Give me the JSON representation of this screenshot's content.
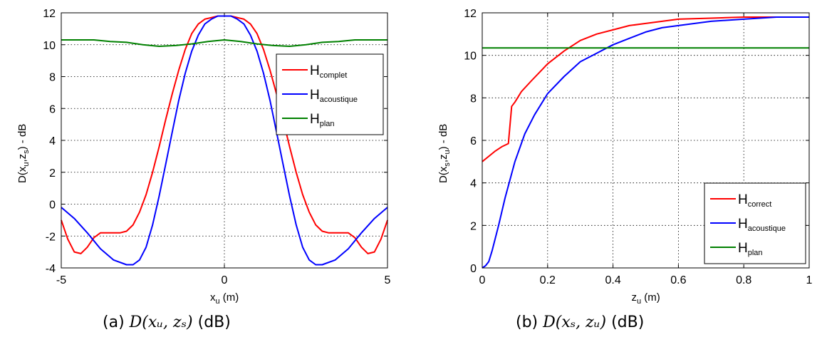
{
  "chart_data": [
    {
      "type": "line",
      "ylabel_main": "D(x",
      "ylabel_sub1": "u",
      "ylabel_mid": ",z",
      "ylabel_sub2": "s",
      "ylabel_end": ") - dB",
      "xlabel_main": "x",
      "xlabel_sub": "u",
      "xlabel_end": " (m)",
      "xlim": [
        -5,
        5
      ],
      "ylim": [
        -4,
        12
      ],
      "xticks": [
        "-5",
        "0",
        "5"
      ],
      "yticks": [
        "-4",
        "-2",
        "0",
        "2",
        "4",
        "6",
        "8",
        "10",
        "12"
      ],
      "grid": true,
      "legend_position": "top-right",
      "series": [
        {
          "name": "H",
          "name_sub": "complet",
          "color": "#ff0000",
          "x": [
            -5,
            -4.8,
            -4.6,
            -4.4,
            -4.2,
            -4,
            -3.8,
            -3.6,
            -3.4,
            -3.2,
            -3,
            -2.8,
            -2.6,
            -2.4,
            -2.2,
            -2,
            -1.8,
            -1.6,
            -1.4,
            -1.2,
            -1,
            -0.8,
            -0.6,
            -0.4,
            -0.2,
            0,
            0.2,
            0.4,
            0.6,
            0.8,
            1,
            1.2,
            1.4,
            1.6,
            1.8,
            2,
            2.2,
            2.4,
            2.6,
            2.8,
            3,
            3.2,
            3.4,
            3.6,
            3.8,
            4,
            4.2,
            4.4,
            4.6,
            4.8,
            5
          ],
          "y": [
            -1.0,
            -2.2,
            -3.0,
            -3.1,
            -2.7,
            -2.1,
            -1.8,
            -1.8,
            -1.8,
            -1.8,
            -1.7,
            -1.3,
            -0.5,
            0.6,
            2.0,
            3.6,
            5.3,
            6.9,
            8.4,
            9.7,
            10.7,
            11.3,
            11.6,
            11.7,
            11.8,
            11.8,
            11.8,
            11.7,
            11.6,
            11.3,
            10.7,
            9.7,
            8.4,
            6.9,
            5.3,
            3.6,
            2.0,
            0.6,
            -0.5,
            -1.3,
            -1.7,
            -1.8,
            -1.8,
            -1.8,
            -1.8,
            -2.1,
            -2.7,
            -3.1,
            -3.0,
            -2.2,
            -1.0
          ]
        },
        {
          "name": "H",
          "name_sub": "acoustique",
          "color": "#0000ff",
          "x": [
            -5,
            -4.6,
            -4.2,
            -3.8,
            -3.4,
            -3,
            -2.8,
            -2.6,
            -2.4,
            -2.2,
            -2,
            -1.8,
            -1.6,
            -1.4,
            -1.2,
            -1,
            -0.8,
            -0.6,
            -0.4,
            -0.2,
            0,
            0.2,
            0.4,
            0.6,
            0.8,
            1,
            1.2,
            1.4,
            1.6,
            1.8,
            2,
            2.2,
            2.4,
            2.6,
            2.8,
            3,
            3.4,
            3.8,
            4.2,
            4.6,
            5
          ],
          "y": [
            -0.2,
            -0.9,
            -1.8,
            -2.8,
            -3.5,
            -3.8,
            -3.8,
            -3.5,
            -2.7,
            -1.3,
            0.5,
            2.5,
            4.5,
            6.5,
            8.2,
            9.6,
            10.6,
            11.3,
            11.6,
            11.8,
            11.8,
            11.8,
            11.6,
            11.3,
            10.6,
            9.6,
            8.2,
            6.5,
            4.5,
            2.5,
            0.5,
            -1.3,
            -2.7,
            -3.5,
            -3.8,
            -3.8,
            -3.5,
            -2.8,
            -1.8,
            -0.9,
            -0.2
          ]
        },
        {
          "name": "H",
          "name_sub": "plan",
          "color": "#008000",
          "x": [
            -5,
            -4.5,
            -4,
            -3.5,
            -3,
            -2.5,
            -2,
            -1.5,
            -1,
            -0.5,
            0,
            0.5,
            1,
            1.5,
            2,
            2.5,
            3,
            3.5,
            4,
            4.5,
            5
          ],
          "y": [
            10.3,
            10.3,
            10.3,
            10.2,
            10.15,
            10.0,
            9.9,
            9.95,
            10.05,
            10.2,
            10.3,
            10.2,
            10.05,
            9.95,
            9.9,
            10.0,
            10.15,
            10.2,
            10.3,
            10.3,
            10.3
          ]
        }
      ],
      "caption_prefix": "(a)  ",
      "caption_math": "D(xᵤ, zₛ)",
      "caption_suffix": " (dB)"
    },
    {
      "type": "line",
      "ylabel_main": "D(x",
      "ylabel_sub1": "s",
      "ylabel_mid": ",z",
      "ylabel_sub2": "u",
      "ylabel_end": ") - dB",
      "xlabel_main": "z",
      "xlabel_sub": "u",
      "xlabel_end": " (m)",
      "xlim": [
        0,
        1
      ],
      "ylim": [
        0,
        12
      ],
      "xticks": [
        "0",
        "0.2",
        "0.4",
        "0.6",
        "0.8",
        "1"
      ],
      "yticks": [
        "0",
        "2",
        "4",
        "6",
        "8",
        "10",
        "12"
      ],
      "grid": true,
      "legend_position": "bottom-right",
      "series": [
        {
          "name": "H",
          "name_sub": "correct",
          "color": "#ff0000",
          "x": [
            0,
            0.02,
            0.04,
            0.06,
            0.08,
            0.09,
            0.1,
            0.12,
            0.15,
            0.2,
            0.25,
            0.3,
            0.35,
            0.4,
            0.45,
            0.5,
            0.55,
            0.6,
            0.7,
            0.8,
            0.9,
            1
          ],
          "y": [
            5.0,
            5.25,
            5.5,
            5.7,
            5.85,
            7.6,
            7.8,
            8.3,
            8.8,
            9.6,
            10.2,
            10.7,
            11.0,
            11.2,
            11.4,
            11.5,
            11.6,
            11.7,
            11.75,
            11.8,
            11.8,
            11.8
          ]
        },
        {
          "name": "H",
          "name_sub": "acoustique",
          "color": "#0000ff",
          "x": [
            0,
            0.01,
            0.02,
            0.03,
            0.05,
            0.07,
            0.1,
            0.13,
            0.16,
            0.2,
            0.25,
            0.3,
            0.35,
            0.4,
            0.45,
            0.5,
            0.55,
            0.6,
            0.7,
            0.8,
            0.9,
            1
          ],
          "y": [
            0,
            0.1,
            0.3,
            0.8,
            2.0,
            3.3,
            5.0,
            6.3,
            7.2,
            8.2,
            9.0,
            9.7,
            10.1,
            10.5,
            10.8,
            11.1,
            11.3,
            11.4,
            11.6,
            11.7,
            11.8,
            11.8
          ]
        },
        {
          "name": "H",
          "name_sub": "plan",
          "color": "#008000",
          "x": [
            0,
            1
          ],
          "y": [
            10.35,
            10.35
          ]
        }
      ],
      "caption_prefix": "(b)  ",
      "caption_math": "D(xₛ, zᵤ)",
      "caption_suffix": " (dB)"
    }
  ]
}
